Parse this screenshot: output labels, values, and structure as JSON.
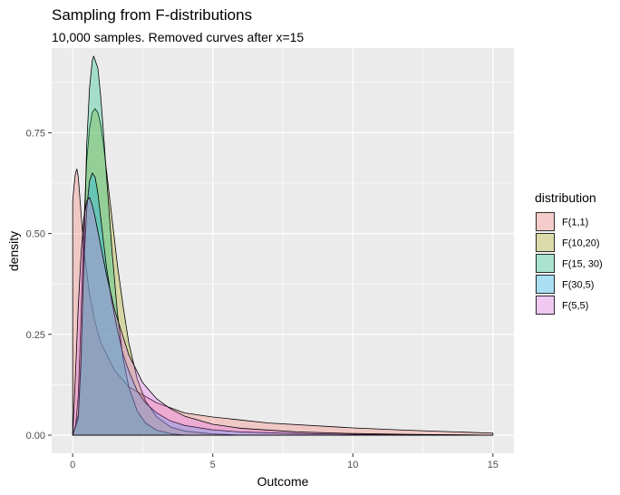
{
  "chart_data": {
    "type": "area",
    "title": "Sampling from F-distributions",
    "subtitle": "10,000 samples. Removed curves after x=15",
    "xlabel": "Outcome",
    "ylabel": "density",
    "xlim": [
      -0.75,
      15.75
    ],
    "ylim": [
      -0.045,
      0.96
    ],
    "x_ticks": [
      0,
      5,
      10,
      15
    ],
    "x_tick_labels": [
      "0",
      "5",
      "10",
      "15"
    ],
    "y_ticks": [
      0.0,
      0.25,
      0.5,
      0.75
    ],
    "y_tick_labels": [
      "0.00",
      "0.25",
      "0.50",
      "0.75"
    ],
    "grid": true,
    "legend": {
      "title": "distribution",
      "position": "right"
    },
    "series": [
      {
        "name": "F(1,1)",
        "fill": "#F8766D",
        "x": [
          0.0,
          0.05,
          0.1,
          0.15,
          0.2,
          0.3,
          0.4,
          0.6,
          0.8,
          1.0,
          1.5,
          2.0,
          3.0,
          4.0,
          5.0,
          7.0,
          10.0,
          12.0,
          15.0
        ],
        "y": [
          0.58,
          0.62,
          0.65,
          0.66,
          0.64,
          0.55,
          0.46,
          0.35,
          0.28,
          0.23,
          0.16,
          0.12,
          0.08,
          0.055,
          0.045,
          0.03,
          0.018,
          0.012,
          0.005
        ]
      },
      {
        "name": "F(10,20)",
        "fill": "#A3A500",
        "x": [
          0.0,
          0.1,
          0.2,
          0.3,
          0.4,
          0.5,
          0.6,
          0.7,
          0.8,
          0.9,
          1.0,
          1.1,
          1.2,
          1.4,
          1.6,
          1.8,
          2.0,
          2.3,
          2.6,
          3.0,
          3.5,
          4.0,
          5.0,
          6.0
        ],
        "y": [
          0.0,
          0.02,
          0.1,
          0.3,
          0.52,
          0.68,
          0.76,
          0.8,
          0.81,
          0.8,
          0.77,
          0.72,
          0.66,
          0.54,
          0.42,
          0.32,
          0.23,
          0.14,
          0.085,
          0.045,
          0.02,
          0.01,
          0.003,
          0.0
        ]
      },
      {
        "name": "F(15, 30)",
        "fill": "#00BF7D",
        "x": [
          0.0,
          0.2,
          0.3,
          0.4,
          0.5,
          0.6,
          0.7,
          0.75,
          0.8,
          0.85,
          0.9,
          1.0,
          1.1,
          1.2,
          1.4,
          1.6,
          1.8,
          2.0,
          2.3,
          2.6,
          3.0,
          3.5,
          4.0
        ],
        "y": [
          0.0,
          0.04,
          0.18,
          0.45,
          0.72,
          0.86,
          0.93,
          0.94,
          0.93,
          0.92,
          0.91,
          0.84,
          0.75,
          0.65,
          0.46,
          0.3,
          0.19,
          0.12,
          0.06,
          0.03,
          0.012,
          0.004,
          0.0
        ]
      },
      {
        "name": "F(30,5)",
        "fill": "#00B0F6",
        "x": [
          0.0,
          0.2,
          0.3,
          0.4,
          0.5,
          0.6,
          0.7,
          0.8,
          0.9,
          1.0,
          1.1,
          1.2,
          1.4,
          1.6,
          1.8,
          2.0,
          2.3,
          2.6,
          3.0,
          3.5,
          4.0,
          5.0,
          6.0,
          8.0,
          10.0,
          12.0,
          15.0
        ],
        "y": [
          0.0,
          0.05,
          0.2,
          0.42,
          0.56,
          0.63,
          0.65,
          0.64,
          0.6,
          0.54,
          0.48,
          0.42,
          0.33,
          0.26,
          0.2,
          0.16,
          0.11,
          0.08,
          0.055,
          0.035,
          0.024,
          0.013,
          0.008,
          0.004,
          0.002,
          0.001,
          0.0
        ]
      },
      {
        "name": "F(5,5)",
        "fill": "#E76BF3",
        "x": [
          0.0,
          0.1,
          0.2,
          0.3,
          0.4,
          0.5,
          0.6,
          0.7,
          0.8,
          1.0,
          1.2,
          1.5,
          2.0,
          2.5,
          3.0,
          3.5,
          4.0,
          5.0,
          6.0,
          8.0,
          10.0,
          12.0,
          15.0
        ],
        "y": [
          0.0,
          0.15,
          0.32,
          0.45,
          0.54,
          0.58,
          0.59,
          0.57,
          0.54,
          0.47,
          0.4,
          0.31,
          0.2,
          0.13,
          0.09,
          0.065,
          0.047,
          0.027,
          0.017,
          0.008,
          0.004,
          0.002,
          0.0
        ]
      }
    ]
  }
}
